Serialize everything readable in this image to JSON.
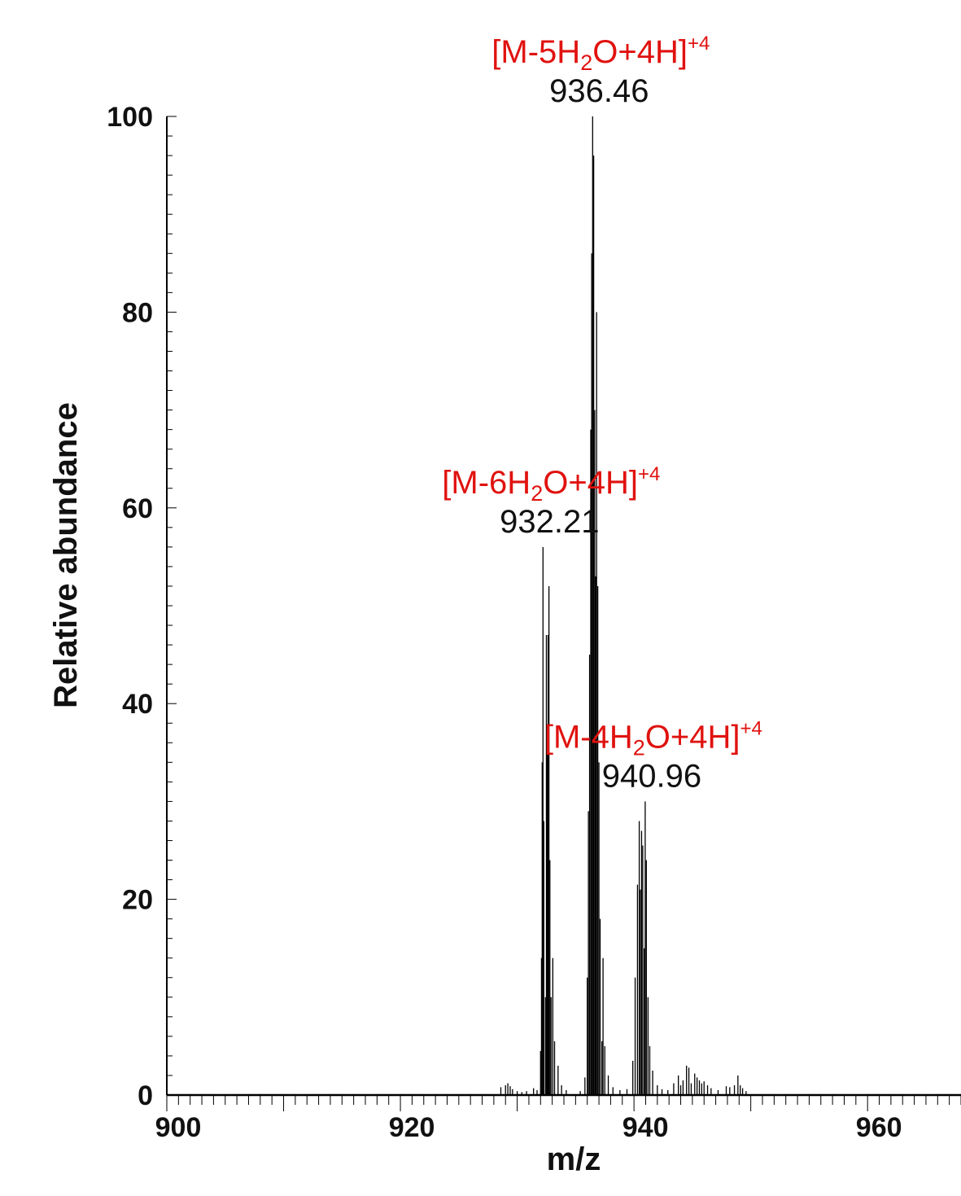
{
  "chart_data": {
    "type": "bar",
    "xlabel": "m/z",
    "ylabel": "Relative abundance",
    "xlim": [
      900,
      968
    ],
    "ylim": [
      0,
      100
    ],
    "x_ticks": [
      900,
      920,
      940,
      960
    ],
    "y_ticks": [
      0,
      20,
      40,
      60,
      80,
      100
    ],
    "colors": {
      "sticks": "#000000",
      "ion_label": "#e0120f",
      "mz_label": "#111111"
    },
    "peaks": [
      {
        "x": 928.6,
        "y": 0.8
      },
      {
        "x": 929.0,
        "y": 1.0
      },
      {
        "x": 929.2,
        "y": 1.2
      },
      {
        "x": 929.4,
        "y": 0.9
      },
      {
        "x": 929.6,
        "y": 0.6
      },
      {
        "x": 930.0,
        "y": 0.4
      },
      {
        "x": 930.4,
        "y": 0.3
      },
      {
        "x": 930.8,
        "y": 0.4
      },
      {
        "x": 931.4,
        "y": 0.7
      },
      {
        "x": 931.7,
        "y": 0.5
      },
      {
        "x": 932.0,
        "y": 4.5
      },
      {
        "x": 932.08,
        "y": 14
      },
      {
        "x": 932.14,
        "y": 34
      },
      {
        "x": 932.21,
        "y": 56
      },
      {
        "x": 932.28,
        "y": 28
      },
      {
        "x": 932.42,
        "y": 10
      },
      {
        "x": 932.5,
        "y": 47
      },
      {
        "x": 932.58,
        "y": 36
      },
      {
        "x": 932.65,
        "y": 47
      },
      {
        "x": 932.72,
        "y": 52
      },
      {
        "x": 932.8,
        "y": 24
      },
      {
        "x": 932.9,
        "y": 10
      },
      {
        "x": 933.05,
        "y": 14
      },
      {
        "x": 933.2,
        "y": 5.5
      },
      {
        "x": 933.5,
        "y": 3
      },
      {
        "x": 933.8,
        "y": 1
      },
      {
        "x": 934.2,
        "y": 0.5
      },
      {
        "x": 935.4,
        "y": 0.4
      },
      {
        "x": 935.8,
        "y": 1.8
      },
      {
        "x": 936.0,
        "y": 12
      },
      {
        "x": 936.1,
        "y": 29
      },
      {
        "x": 936.2,
        "y": 45
      },
      {
        "x": 936.3,
        "y": 68
      },
      {
        "x": 936.38,
        "y": 86
      },
      {
        "x": 936.46,
        "y": 100
      },
      {
        "x": 936.55,
        "y": 96
      },
      {
        "x": 936.64,
        "y": 70
      },
      {
        "x": 936.72,
        "y": 53
      },
      {
        "x": 936.8,
        "y": 80
      },
      {
        "x": 936.9,
        "y": 52
      },
      {
        "x": 937.0,
        "y": 34
      },
      {
        "x": 937.1,
        "y": 18
      },
      {
        "x": 937.25,
        "y": 5.5
      },
      {
        "x": 937.35,
        "y": 14
      },
      {
        "x": 937.5,
        "y": 5
      },
      {
        "x": 937.8,
        "y": 2
      },
      {
        "x": 938.2,
        "y": 0.8
      },
      {
        "x": 938.8,
        "y": 0.5
      },
      {
        "x": 939.4,
        "y": 0.6
      },
      {
        "x": 939.9,
        "y": 3.5
      },
      {
        "x": 940.1,
        "y": 12
      },
      {
        "x": 940.3,
        "y": 21.5
      },
      {
        "x": 940.45,
        "y": 28
      },
      {
        "x": 940.55,
        "y": 21
      },
      {
        "x": 940.65,
        "y": 27
      },
      {
        "x": 940.75,
        "y": 25.5
      },
      {
        "x": 940.88,
        "y": 15
      },
      {
        "x": 940.96,
        "y": 30
      },
      {
        "x": 941.06,
        "y": 24
      },
      {
        "x": 941.2,
        "y": 10
      },
      {
        "x": 941.35,
        "y": 5
      },
      {
        "x": 941.6,
        "y": 2.5
      },
      {
        "x": 942.0,
        "y": 1
      },
      {
        "x": 942.4,
        "y": 0.6
      },
      {
        "x": 942.9,
        "y": 0.5
      },
      {
        "x": 943.4,
        "y": 1.2
      },
      {
        "x": 943.8,
        "y": 2
      },
      {
        "x": 944.0,
        "y": 1
      },
      {
        "x": 944.2,
        "y": 1.5
      },
      {
        "x": 944.5,
        "y": 3
      },
      {
        "x": 944.7,
        "y": 2.8
      },
      {
        "x": 944.9,
        "y": 1.2
      },
      {
        "x": 945.2,
        "y": 2.2
      },
      {
        "x": 945.4,
        "y": 1.8
      },
      {
        "x": 945.6,
        "y": 1.5
      },
      {
        "x": 945.8,
        "y": 1.2
      },
      {
        "x": 946.0,
        "y": 1.4
      },
      {
        "x": 946.3,
        "y": 1.0
      },
      {
        "x": 946.6,
        "y": 0.7
      },
      {
        "x": 947.2,
        "y": 0.5
      },
      {
        "x": 947.9,
        "y": 0.9
      },
      {
        "x": 948.2,
        "y": 0.8
      },
      {
        "x": 948.6,
        "y": 1.0
      },
      {
        "x": 948.9,
        "y": 2.0
      },
      {
        "x": 949.1,
        "y": 1.0
      },
      {
        "x": 949.3,
        "y": 0.7
      },
      {
        "x": 949.6,
        "y": 0.4
      }
    ],
    "annotations": [
      {
        "x": 932.21,
        "y": 56,
        "ion_main": "[M-6H",
        "ion_sub": "2",
        "ion_rest": "O+4H]",
        "ion_sup": "+4",
        "mz": "932.21"
      },
      {
        "x": 936.46,
        "y": 100,
        "ion_main": "[M-5H",
        "ion_sub": "2",
        "ion_rest": "O+4H]",
        "ion_sup": "+4",
        "mz": "936.46"
      },
      {
        "x": 940.96,
        "y": 30,
        "ion_main": "[M-4H",
        "ion_sub": "2",
        "ion_rest": "O+4H]",
        "ion_sup": "+4",
        "mz": "940.96"
      }
    ]
  }
}
